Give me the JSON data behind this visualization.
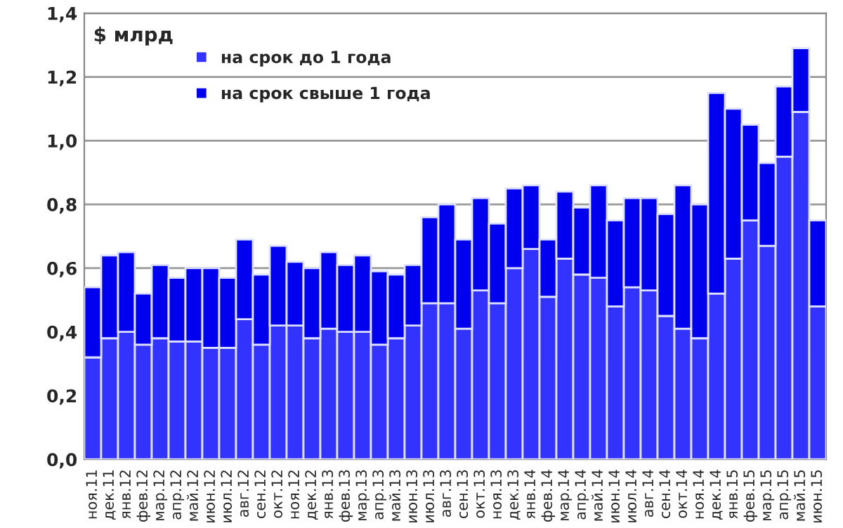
{
  "chart_data": {
    "type": "bar",
    "stacked": true,
    "ylabel": "$ млрд",
    "categories": [
      "ноя.11",
      "дек.11",
      "янв.12",
      "фев.12",
      "мар.12",
      "апр.12",
      "май.12",
      "июн.12",
      "июл.12",
      "авг.12",
      "сен.12",
      "окт.12",
      "ноя.12",
      "дек.12",
      "янв.13",
      "фев.13",
      "мар.13",
      "апр.13",
      "май.13",
      "июн.13",
      "июл.13",
      "авг.13",
      "сен.13",
      "окт.13",
      "ноя.13",
      "дек.13",
      "янв.14",
      "фев.14",
      "мар.14",
      "апр.14",
      "май.14",
      "июн.14",
      "июл.14",
      "авг.14",
      "сен.14",
      "окт.14",
      "ноя.14",
      "дек.14",
      "янв.15",
      "фев.15",
      "мар.15",
      "апр.15",
      "май.15",
      "июн.15"
    ],
    "series": [
      {
        "name": "на срок до 1 года",
        "color": "#3333ff",
        "values": [
          0.32,
          0.38,
          0.4,
          0.36,
          0.38,
          0.37,
          0.37,
          0.35,
          0.35,
          0.44,
          0.36,
          0.42,
          0.42,
          0.38,
          0.41,
          0.4,
          0.4,
          0.36,
          0.38,
          0.42,
          0.49,
          0.49,
          0.41,
          0.53,
          0.49,
          0.6,
          0.66,
          0.51,
          0.63,
          0.58,
          0.57,
          0.48,
          0.54,
          0.53,
          0.45,
          0.41,
          0.38,
          0.52,
          0.63,
          0.75,
          0.67,
          0.95,
          1.09,
          0.48
        ]
      },
      {
        "name": "на срок свыше 1 года",
        "color": "#0000ee",
        "values": [
          0.22,
          0.26,
          0.25,
          0.16,
          0.23,
          0.2,
          0.23,
          0.25,
          0.22,
          0.25,
          0.22,
          0.25,
          0.2,
          0.22,
          0.24,
          0.21,
          0.24,
          0.23,
          0.2,
          0.19,
          0.27,
          0.31,
          0.28,
          0.29,
          0.25,
          0.25,
          0.2,
          0.18,
          0.21,
          0.21,
          0.29,
          0.27,
          0.28,
          0.29,
          0.32,
          0.45,
          0.42,
          0.63,
          0.47,
          0.3,
          0.26,
          0.22,
          0.2,
          0.27
        ]
      }
    ],
    "ylim": [
      0,
      1.4
    ],
    "yticks": [
      {
        "value": 0,
        "label": "0,0"
      },
      {
        "value": 0.2,
        "label": "0,2"
      },
      {
        "value": 0.4,
        "label": "0,4"
      },
      {
        "value": 0.6,
        "label": "0,6"
      },
      {
        "value": 0.8,
        "label": "0,8"
      },
      {
        "value": 1.0,
        "label": "1,0"
      },
      {
        "value": 1.2,
        "label": "1,2"
      },
      {
        "value": 1.4,
        "label": "1,4"
      }
    ],
    "grid": "y",
    "legend": "top left"
  }
}
